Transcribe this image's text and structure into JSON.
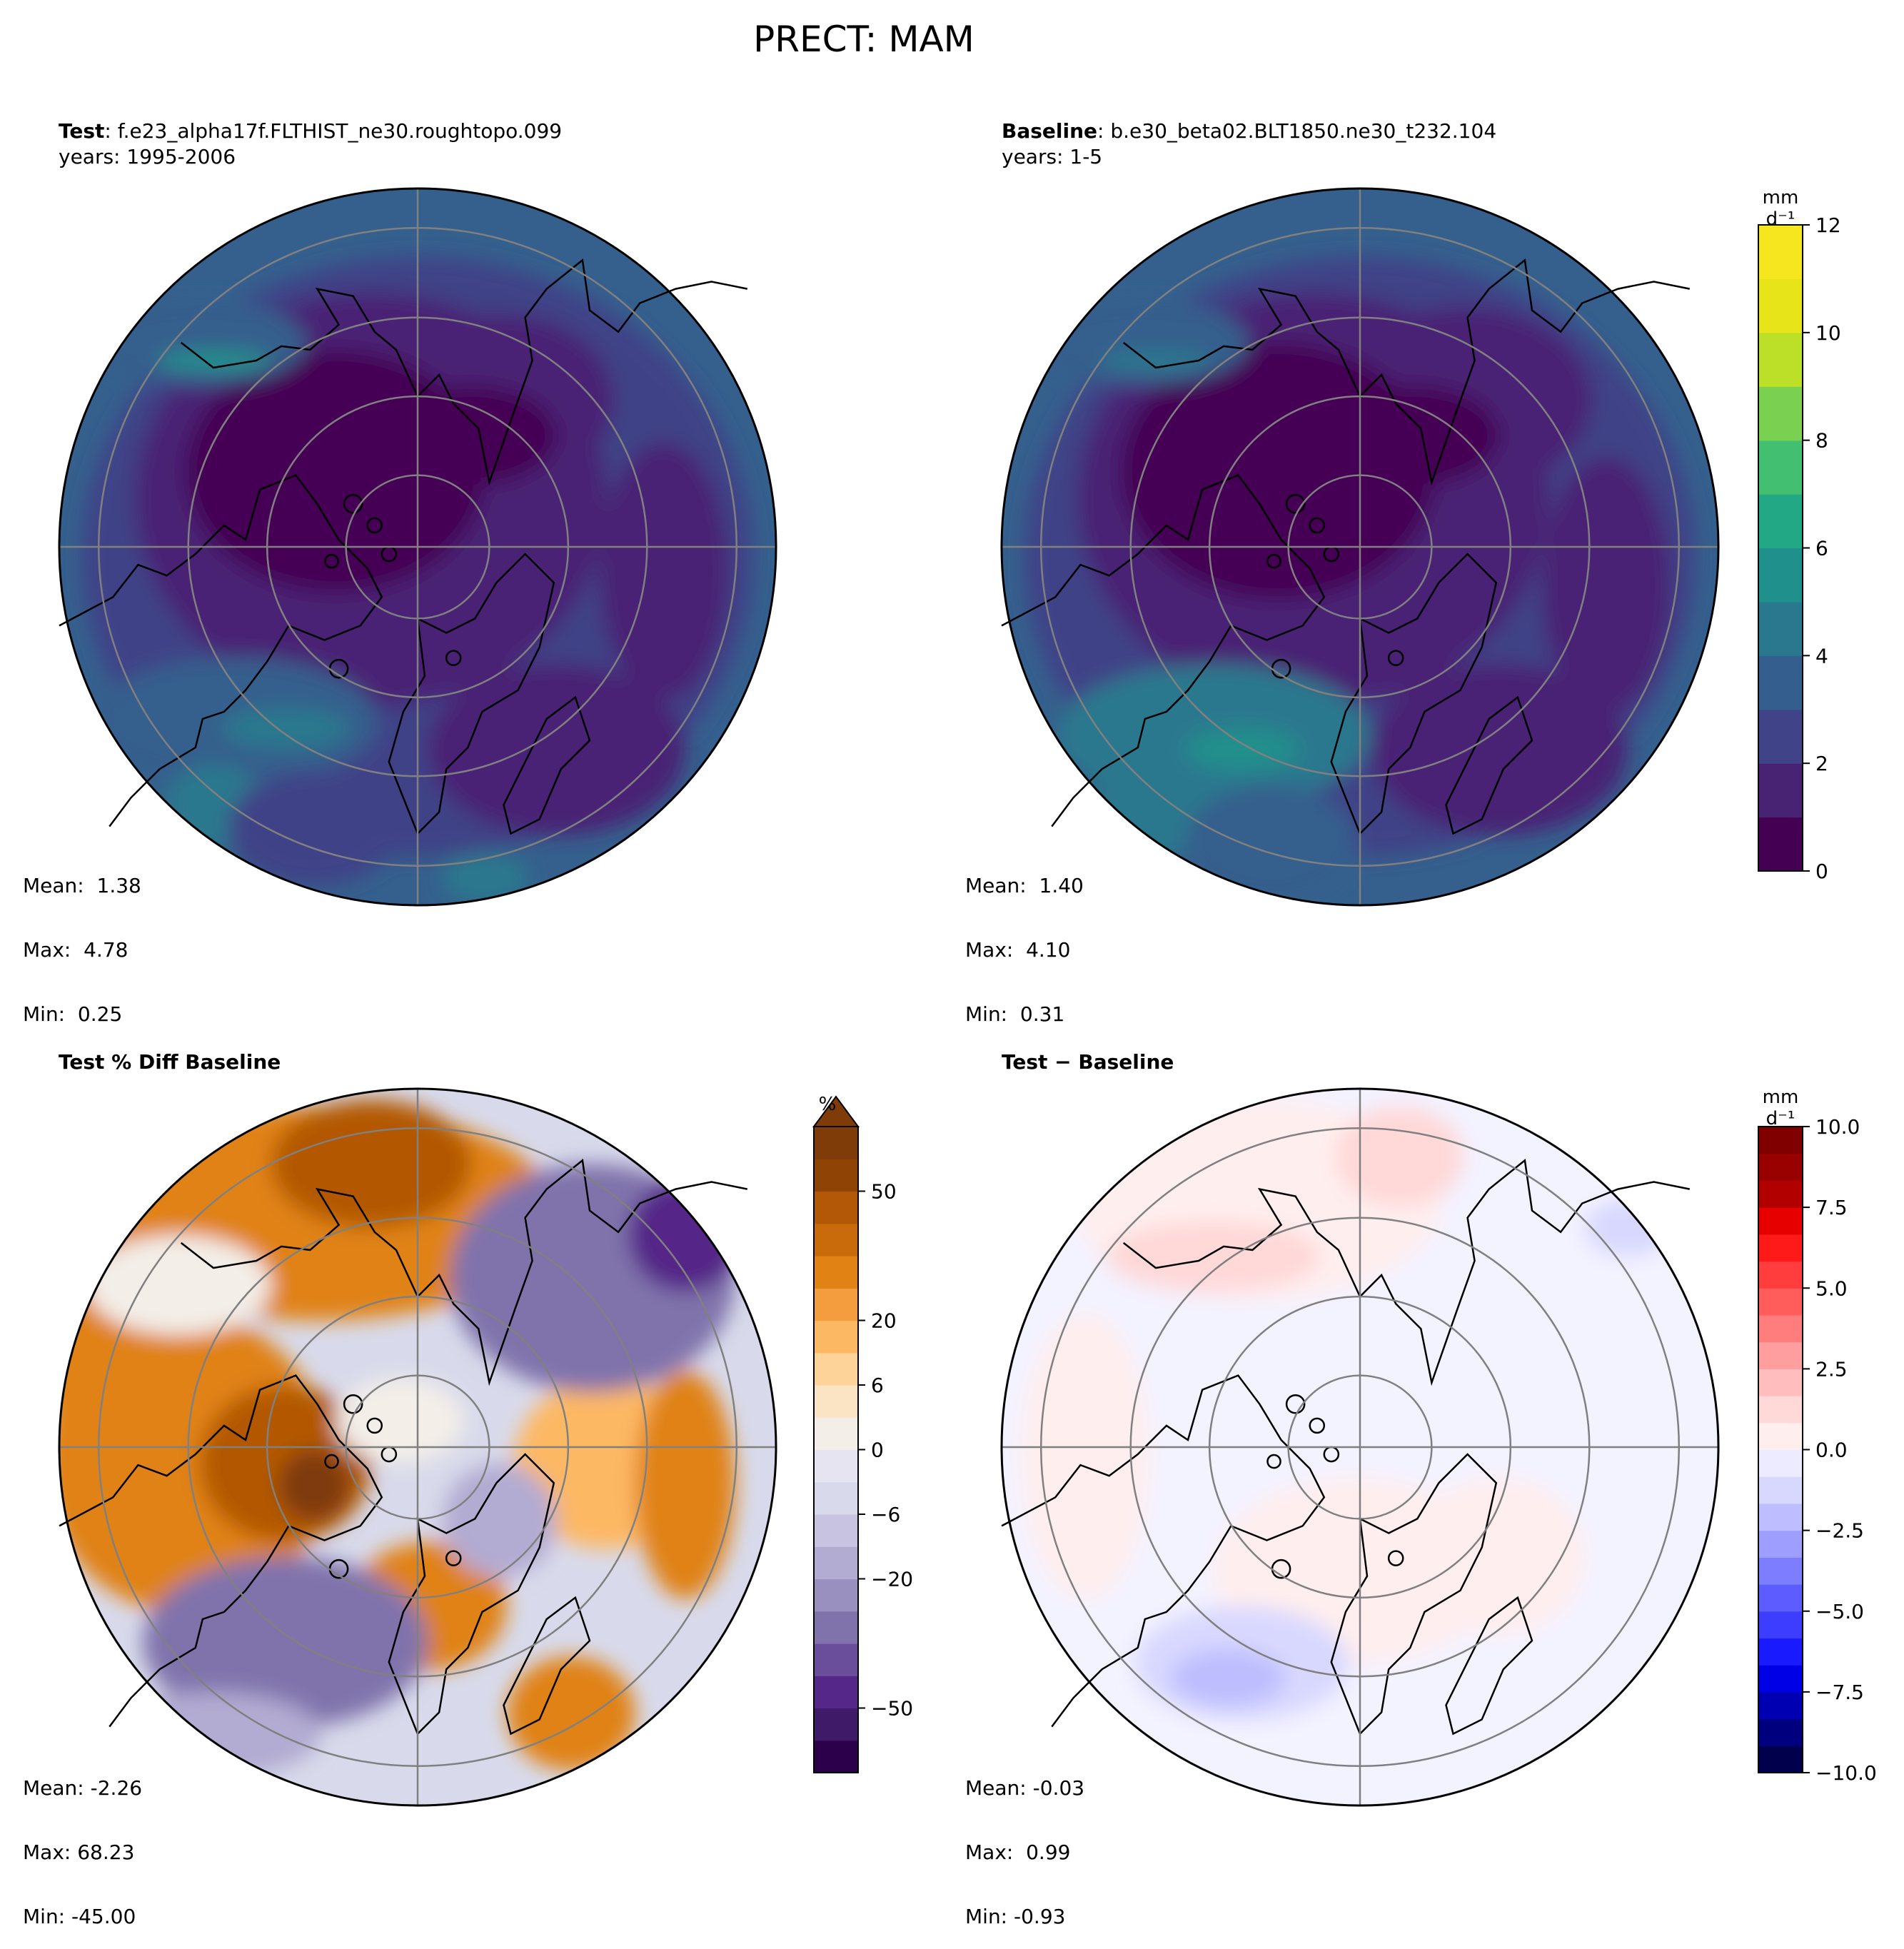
{
  "figure": {
    "title": "PRECT: MAM"
  },
  "panels": [
    {
      "id": "test",
      "title_bold": "Test",
      "title_rest": ": f.e23_alpha17f.FLTHIST_ne30.roughtopo.099",
      "subtitle": "years: 1995-2006",
      "stats": {
        "mean": "Mean:  1.38",
        "max": "Max:  4.78",
        "min": "Min:  0.25"
      },
      "colormap": "viridis"
    },
    {
      "id": "baseline",
      "title_bold": "Baseline",
      "title_rest": ": b.e30_beta02.BLT1850.ne30_t232.104",
      "subtitle": "years: 1-5",
      "stats": {
        "mean": "Mean:  1.40",
        "max": "Max:  4.10",
        "min": "Min:  0.31"
      },
      "colormap": "viridis"
    },
    {
      "id": "pctdiff",
      "title_bold": "Test % Diff Baseline",
      "title_rest": "",
      "subtitle": "",
      "stats": {
        "mean": "Mean: -2.26",
        "max": "Max: 68.23",
        "min": "Min: -45.00"
      },
      "colormap": "PuOr_r"
    },
    {
      "id": "diff",
      "title_bold": "Test − Baseline",
      "title_rest": "",
      "subtitle": "",
      "stats": {
        "mean": "Mean: -0.03",
        "max": "Max:  0.99",
        "min": "Min: -0.93"
      },
      "colormap": "seismic"
    }
  ],
  "colorbars": {
    "mean": {
      "unit": "mm d⁻¹",
      "range": [
        0,
        12
      ],
      "ticks": [
        "0",
        "2",
        "4",
        "6",
        "8",
        "10",
        "12"
      ],
      "colors": [
        "#440154",
        "#482374",
        "#404387",
        "#345e8d",
        "#29788e",
        "#20908c",
        "#22a884",
        "#43bf71",
        "#7ad151",
        "#bcdf27",
        "#e7e419",
        "#f5e61f"
      ]
    },
    "pct": {
      "unit": "%",
      "ticks": [
        "−50",
        "−20",
        "−6",
        "0",
        "6",
        "20",
        "50"
      ],
      "colors": [
        "#2d004b",
        "#3f1a68",
        "#542788",
        "#6a4d9b",
        "#8073ac",
        "#9990c0",
        "#b2abd2",
        "#c8c3e0",
        "#d8daeb",
        "#e6e4f0",
        "#f3eee8",
        "#fbe4c4",
        "#fdd39a",
        "#fdb863",
        "#f49d3e",
        "#e08214",
        "#c96a0b",
        "#b35806",
        "#8f4405",
        "#7f3b08"
      ],
      "extend_color": "#7f3b08"
    },
    "diff": {
      "unit": "mm d⁻¹",
      "range": [
        -10,
        10
      ],
      "ticks": [
        "−10.0",
        "−7.5",
        "−5.0",
        "−2.5",
        "0.0",
        "2.5",
        "5.0",
        "7.5",
        "10.0"
      ],
      "colors": [
        "#00004c",
        "#00007f",
        "#0000b2",
        "#0000e6",
        "#1a1aff",
        "#3d3dff",
        "#5c5cff",
        "#7d7dff",
        "#9e9eff",
        "#bdbdff",
        "#d8d8ff",
        "#ecebff",
        "#ffeeee",
        "#ffd8d8",
        "#ffbdbd",
        "#ff9e9e",
        "#ff7d7d",
        "#ff5c5c",
        "#ff3d3d",
        "#ff1a1a",
        "#e60000",
        "#b20000",
        "#990000",
        "#800000"
      ]
    }
  }
}
